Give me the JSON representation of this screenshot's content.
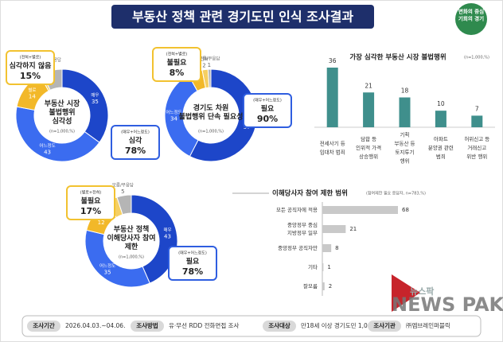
{
  "header": {
    "title": "부동산 정책 관련 경기도민 인식 조사결과",
    "logo": "변화의 중심\n기회의 경기"
  },
  "chart_data": [
    {
      "type": "donut",
      "title": "부동산 시장\n불법행위\n심각성",
      "note": "(n=1,000,%)",
      "categories": [
        "매우",
        "어느정도",
        "별로",
        "전혀",
        "모름/무응답"
      ],
      "values": [
        35,
        43,
        14,
        1,
        7
      ],
      "colors": [
        "#1d46c9",
        "#3b6cf0",
        "#f2b829",
        "#f5cf62",
        "#b5b5b5"
      ],
      "callouts": [
        {
          "note": "(전혀+별로)",
          "label": "심각하지 않음",
          "text": "15%",
          "color": "#f2c230"
        },
        {
          "note": "(매우+어느정도)",
          "label": "심각",
          "text": "78%",
          "color": "#2f5ee0"
        }
      ]
    },
    {
      "type": "donut",
      "title": "경기도 차원\n불법행위 단속 필요성",
      "note": "(n=1,000,%)",
      "categories": [
        "매우",
        "어느정도",
        "별로",
        "전혀",
        "모름/무응답"
      ],
      "values": [
        57,
        34,
        5,
        2,
        1
      ],
      "colors": [
        "#1d46c9",
        "#3b6cf0",
        "#f2b829",
        "#f5cf62",
        "#b5b5b5"
      ],
      "callouts": [
        {
          "note": "(전혀+별로)",
          "label": "불필요",
          "text": "8%",
          "color": "#f2c230"
        },
        {
          "note": "(매우+어느정도)",
          "label": "필요",
          "text": "90%",
          "color": "#2f5ee0"
        }
      ]
    },
    {
      "type": "donut",
      "title": "부동산 정책\n이해당사자 참여\n제한",
      "note": "(n=1,000,%)",
      "categories": [
        "매우",
        "어느정도",
        "별로",
        "전혀",
        "모름/무응답"
      ],
      "values": [
        43,
        35,
        12,
        4,
        5
      ],
      "colors": [
        "#1d46c9",
        "#3b6cf0",
        "#f2b829",
        "#f5cf62",
        "#b5b5b5"
      ],
      "callouts": [
        {
          "note": "(별로+전혀)",
          "label": "불필요",
          "text": "17%",
          "color": "#f2c230"
        },
        {
          "note": "(매우+어느정도)",
          "label": "필요",
          "text": "78%",
          "color": "#2f5ee0"
        }
      ]
    },
    {
      "type": "bar",
      "title": "가장 심각한 부동산 시장 불법행위",
      "subtitle": "(n=1,000,%)",
      "categories": [
        "전세사기 등\n임대차 범죄",
        "담합 등\n인위적 가격\n상승행위",
        "기획\n부동산 등\n토지투기\n행위",
        "아파트\n분양권 관련\n범죄",
        "허위신고 등\n거래신고\n위반 행위"
      ],
      "values": [
        36,
        21,
        18,
        10,
        7
      ],
      "color": "#3f8f8c"
    },
    {
      "type": "hbar",
      "title": "이해당사자 참여 제한 범위",
      "subtitle": "(참여제한 필요 응답자, n=783,%)",
      "categories": [
        "모든 공직자에 적용",
        "중앙정부 중심\n지방정부 일부",
        "중앙정부 공직자만",
        "기타",
        "잘모름"
      ],
      "values": [
        68,
        21,
        8,
        1,
        2
      ],
      "color": "#c9c9c9"
    }
  ],
  "footer": [
    {
      "label": "조사기간",
      "text": "2026.04.03.~04.06."
    },
    {
      "label": "조사방법",
      "text": "유·무선 RDD 전화면접 조사"
    },
    {
      "label": "조사대상",
      "text": "만18세 이상 경기도민 1,000명"
    },
    {
      "label": "조사기관",
      "text": "㈜엠브레인퍼블릭"
    }
  ],
  "watermark": {
    "small": "뉴스팍",
    "big": "NEWS PAK"
  }
}
